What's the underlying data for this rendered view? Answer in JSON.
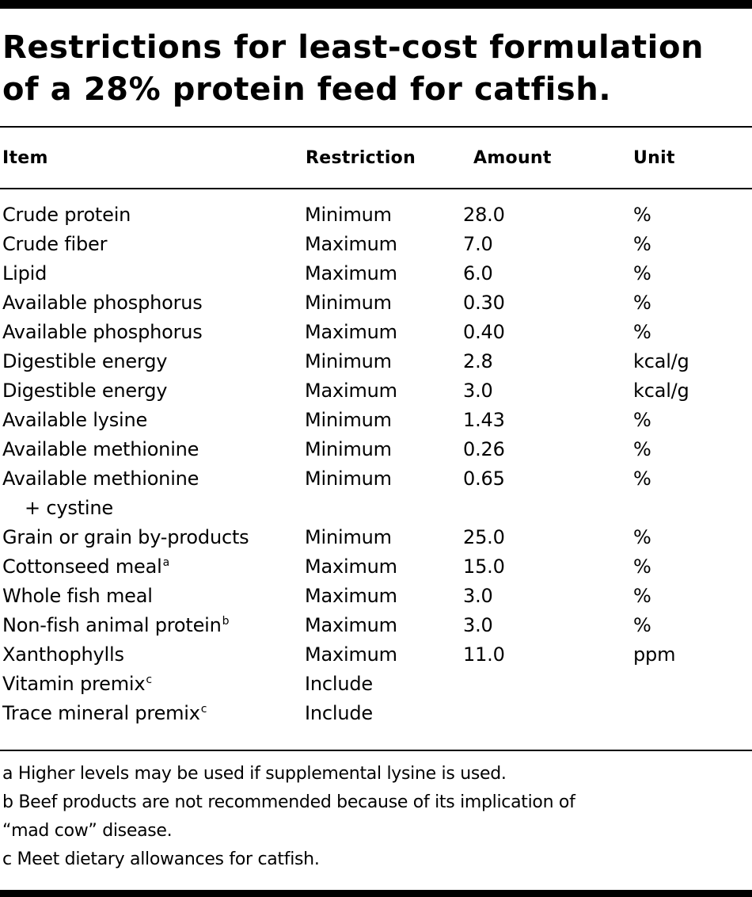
{
  "title": {
    "line1": "Restrictions for least-cost formulation",
    "line2": "of a 28% protein feed for catfish."
  },
  "table": {
    "headers": {
      "item": "Item",
      "restriction": "Restriction",
      "amount": "Amount",
      "unit": "Unit"
    },
    "rows": [
      {
        "item": "Crude protein",
        "sup": "",
        "cont": "",
        "restriction": "Minimum",
        "amount": "28.0",
        "unit": "%"
      },
      {
        "item": "Crude fiber",
        "sup": "",
        "cont": "",
        "restriction": "Maximum",
        "amount": "7.0",
        "unit": "%"
      },
      {
        "item": "Lipid",
        "sup": "",
        "cont": "",
        "restriction": "Maximum",
        "amount": "6.0",
        "unit": "%"
      },
      {
        "item": "Available phosphorus",
        "sup": "",
        "cont": "",
        "restriction": "Minimum",
        "amount": "0.30",
        "unit": "%"
      },
      {
        "item": "Available phosphorus",
        "sup": "",
        "cont": "",
        "restriction": "Maximum",
        "amount": "0.40",
        "unit": "%"
      },
      {
        "item": "Digestible energy",
        "sup": "",
        "cont": "",
        "restriction": "Minimum",
        "amount": "2.8",
        "unit": "kcal/g"
      },
      {
        "item": "Digestible energy",
        "sup": "",
        "cont": "",
        "restriction": "Maximum",
        "amount": "3.0",
        "unit": "kcal/g"
      },
      {
        "item": "Available lysine",
        "sup": "",
        "cont": "",
        "restriction": "Minimum",
        "amount": "1.43",
        "unit": "%"
      },
      {
        "item": "Available methionine",
        "sup": "",
        "cont": "",
        "restriction": "Minimum",
        "amount": "0.26",
        "unit": "%"
      },
      {
        "item": "Available methionine",
        "sup": "",
        "cont": "+ cystine",
        "restriction": "Minimum",
        "amount": "0.65",
        "unit": "%"
      },
      {
        "item": "Grain or grain by-products",
        "sup": "",
        "cont": "",
        "restriction": "Minimum",
        "amount": "25.0",
        "unit": "%"
      },
      {
        "item": "Cottonseed meal",
        "sup": "a",
        "cont": "",
        "restriction": "Maximum",
        "amount": "15.0",
        "unit": "%"
      },
      {
        "item": "Whole fish meal",
        "sup": "",
        "cont": "",
        "restriction": "Maximum",
        "amount": "3.0",
        "unit": "%"
      },
      {
        "item": "Non-fish animal protein",
        "sup": "b",
        "cont": "",
        "restriction": "Maximum",
        "amount": "3.0",
        "unit": "%"
      },
      {
        "item": "Xanthophylls",
        "sup": "",
        "cont": "",
        "restriction": "Maximum",
        "amount": "11.0",
        "unit": "ppm"
      },
      {
        "item": "Vitamin premix",
        "sup": "c",
        "cont": "",
        "restriction": "Include",
        "amount": "",
        "unit": ""
      },
      {
        "item": "Trace mineral premix",
        "sup": "c",
        "cont": "",
        "restriction": "Include",
        "amount": "",
        "unit": ""
      }
    ]
  },
  "footnotes": [
    "a Higher levels may be used if supplemental lysine is used.",
    "b Beef products are not recommended because of its implication of",
    "“mad cow” disease.",
    "c Meet dietary allowances for catfish."
  ]
}
